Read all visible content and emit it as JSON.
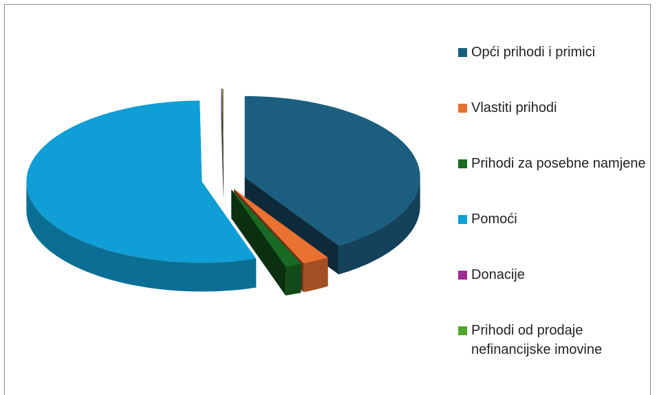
{
  "chart_data": {
    "type": "pie3d",
    "categories": [
      "Opći prihodi i primici",
      "Vlastiti prihodi",
      "Prihodi za posebne namjene",
      "Pomoći",
      "Donacije",
      "Prihodi od prodaje nefinancijske imovine"
    ],
    "values": [
      41,
      2.5,
      1.5,
      54.8,
      0.1,
      0.1
    ],
    "colors": [
      "#1b5e80",
      "#e97132",
      "#196b24",
      "#0f9ed5",
      "#a02b93",
      "#4ea72e"
    ],
    "legend": "right"
  }
}
